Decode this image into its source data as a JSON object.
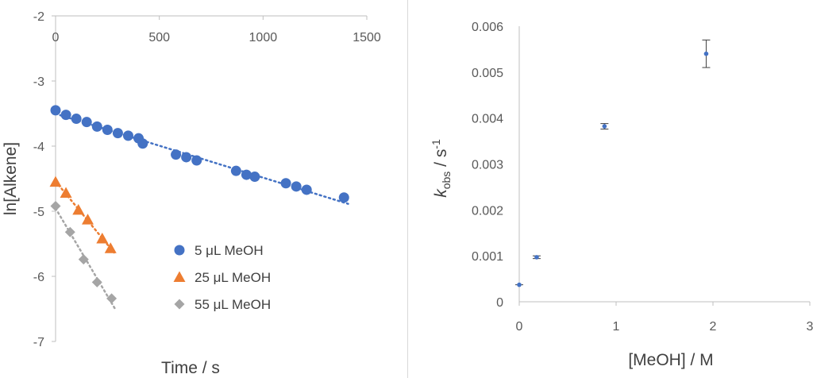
{
  "chart_data": [
    {
      "type": "scatter",
      "title": "",
      "xlabel": "Time / s",
      "ylabel": "ln[Alkene]",
      "xlim": [
        0,
        1500
      ],
      "ylim": [
        -7,
        -2
      ],
      "x_ticks": [
        "0",
        "500",
        "1000",
        "1500"
      ],
      "y_ticks": [
        "-2",
        "-3",
        "-4",
        "-5",
        "-6",
        "-7"
      ],
      "x_axis_position": "top",
      "legend_position": "bottom-center",
      "grid": false,
      "series": [
        {
          "name": "5 μL MeOH",
          "marker": "circle",
          "color": "#4472C4",
          "trendline": "linear-dotted",
          "x": [
            0,
            50,
            100,
            150,
            200,
            250,
            300,
            350,
            400,
            420,
            580,
            630,
            680,
            870,
            920,
            960,
            1110,
            1160,
            1210,
            1390
          ],
          "y": [
            -3.45,
            -3.52,
            -3.58,
            -3.63,
            -3.7,
            -3.75,
            -3.8,
            -3.84,
            -3.88,
            -3.96,
            -4.13,
            -4.17,
            -4.22,
            -4.38,
            -4.44,
            -4.47,
            -4.57,
            -4.62,
            -4.67,
            -4.79
          ]
        },
        {
          "name": "25 μL MeOH",
          "marker": "triangle",
          "color": "#ED7D31",
          "trendline": "linear-dotted",
          "x": [
            0,
            50,
            110,
            155,
            225,
            265
          ],
          "y": [
            -4.55,
            -4.72,
            -4.98,
            -5.13,
            -5.42,
            -5.57
          ]
        },
        {
          "name": "55 μL MeOH",
          "marker": "diamond",
          "color": "#A5A5A5",
          "trendline": "linear-dotted",
          "x": [
            0,
            70,
            135,
            200,
            270
          ],
          "y": [
            -4.92,
            -5.32,
            -5.74,
            -6.09,
            -6.34
          ]
        }
      ]
    },
    {
      "type": "scatter",
      "title": "",
      "xlabel": "[MeOH] / M",
      "ylabel_main": "k",
      "ylabel_sub": "obs",
      "ylabel_mid": " / s",
      "ylabel_sup": "-1",
      "xlim": [
        0,
        3
      ],
      "ylim": [
        0,
        0.006
      ],
      "x_ticks": [
        "0",
        "1",
        "2",
        "3"
      ],
      "y_ticks": [
        "0",
        "0.001",
        "0.002",
        "0.003",
        "0.004",
        "0.005",
        "0.006"
      ],
      "grid": false,
      "series": [
        {
          "marker": "circle",
          "color": "#4472C4",
          "x": [
            0,
            0.18,
            0.88,
            1.93
          ],
          "y": [
            0.00037,
            0.00097,
            0.00382,
            0.0054
          ],
          "error": [
            0.0,
            3e-05,
            6e-05,
            0.0003
          ]
        }
      ]
    }
  ]
}
